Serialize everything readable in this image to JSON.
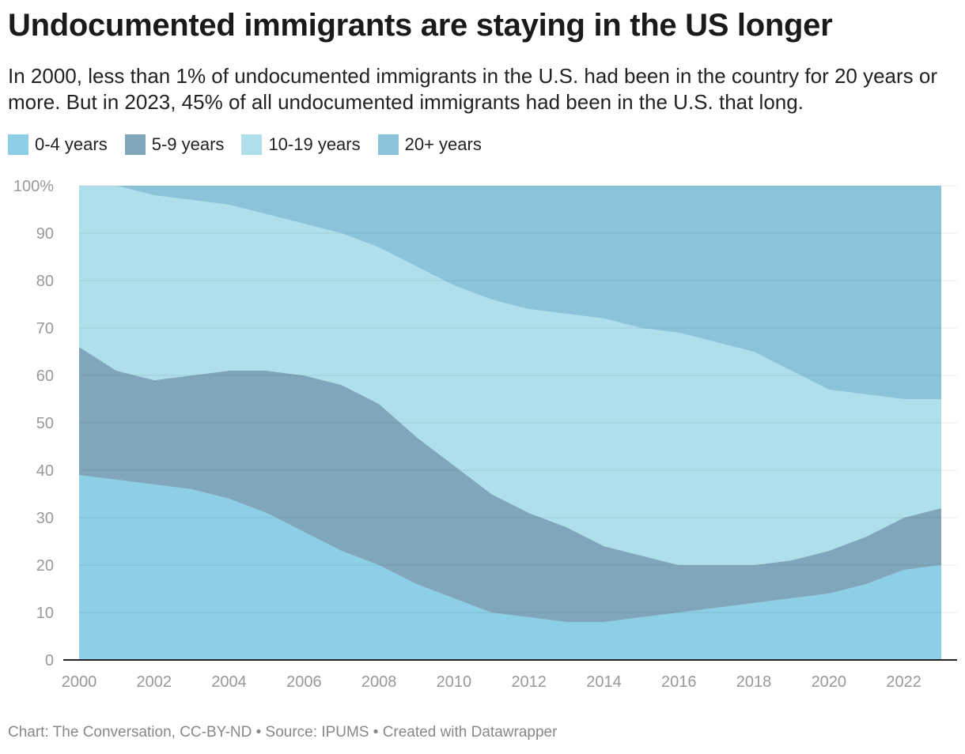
{
  "title": "Undocumented immigrants are staying in the US longer",
  "subtitle": "In 2000, less than 1% of undocumented immigrants in the U.S. had been in the country for 20 years or more. But in 2023, 45% of all undocumented immigrants had been in the U.S. that long.",
  "footer": "Chart: The Conversation, CC-BY-ND • Source: IPUMS • Created with Datawrapper",
  "legend": [
    {
      "label": "0-4 years",
      "color": "#8ccfe6"
    },
    {
      "label": "5-9 years",
      "color": "#7fa6ba"
    },
    {
      "label": "10-19 years",
      "color": "#afdfea"
    },
    {
      "label": "20+ years",
      "color": "#8bc4da"
    }
  ],
  "chart_data": {
    "type": "area",
    "stacked": true,
    "x": [
      2000,
      2001,
      2002,
      2003,
      2004,
      2005,
      2006,
      2007,
      2008,
      2009,
      2010,
      2011,
      2012,
      2013,
      2014,
      2015,
      2016,
      2017,
      2018,
      2019,
      2020,
      2021,
      2022,
      2023
    ],
    "series": [
      {
        "name": "0-4 years",
        "color": "#8ccfe6",
        "values": [
          39,
          38,
          37,
          36,
          34,
          31,
          27,
          23,
          20,
          16,
          13,
          10,
          9,
          8,
          8,
          9,
          10,
          11,
          12,
          13,
          14,
          16,
          19,
          20
        ]
      },
      {
        "name": "5-9 years",
        "color": "#7fa6ba",
        "values": [
          27,
          23,
          22,
          24,
          27,
          30,
          33,
          35,
          34,
          31,
          28,
          25,
          22,
          20,
          16,
          13,
          10,
          9,
          8,
          8,
          9,
          10,
          11,
          12
        ]
      },
      {
        "name": "10-19 years",
        "color": "#afdfea",
        "values": [
          34,
          39,
          39,
          37,
          35,
          33,
          32,
          32,
          33,
          36,
          38,
          41,
          43,
          45,
          48,
          48,
          49,
          47,
          45,
          40,
          34,
          30,
          25,
          23
        ]
      },
      {
        "name": "20+ years",
        "color": "#8bc4da",
        "values": [
          0,
          0,
          2,
          3,
          4,
          6,
          8,
          10,
          13,
          17,
          21,
          24,
          26,
          27,
          28,
          30,
          31,
          33,
          35,
          39,
          43,
          44,
          45,
          45
        ]
      }
    ],
    "xticks": [
      "2000",
      "2002",
      "2004",
      "2006",
      "2008",
      "2010",
      "2012",
      "2014",
      "2016",
      "2018",
      "2020",
      "2022"
    ],
    "yticks": [
      "0",
      "10",
      "20",
      "30",
      "40",
      "50",
      "60",
      "70",
      "80",
      "90",
      "100%"
    ],
    "ylim": [
      0,
      100
    ],
    "xlabel": "",
    "ylabel": "",
    "grid": true,
    "legend_position": "top-left"
  }
}
